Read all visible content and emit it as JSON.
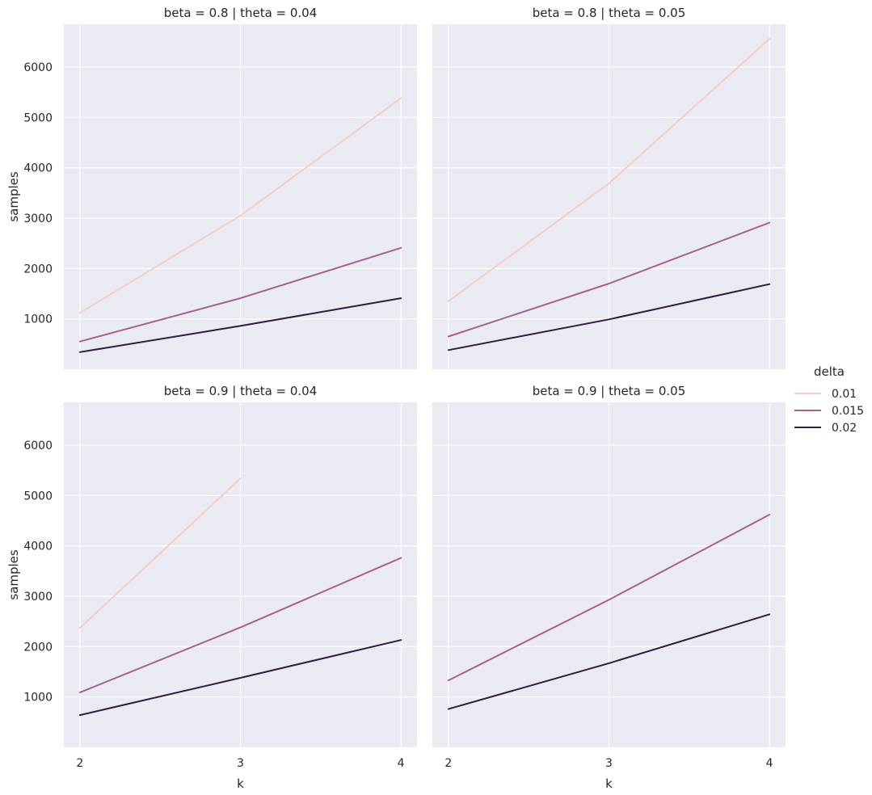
{
  "chart_data": {
    "type": "line",
    "facet_rows": {
      "variable": "beta",
      "values": [
        "0.8",
        "0.9"
      ]
    },
    "facet_cols": {
      "variable": "theta",
      "values": [
        "0.04",
        "0.05"
      ]
    },
    "xlabel": "k",
    "ylabel": "samples",
    "x": [
      2,
      3,
      4
    ],
    "xlim": [
      1.9,
      4.1
    ],
    "ylim": [
      0,
      6850
    ],
    "y_ticks": [
      1000,
      2000,
      3000,
      4000,
      5000,
      6000
    ],
    "x_ticks": [
      2,
      3,
      4
    ],
    "grid": true,
    "legend": {
      "title": "delta",
      "placement": "center-right",
      "entries": [
        {
          "label": "0.01",
          "color": "#F2D0C6"
        },
        {
          "label": "0.015",
          "color": "#A8628A"
        },
        {
          "label": "0.02",
          "color": "#2D1E3E"
        }
      ]
    },
    "panels": [
      {
        "title": "beta = 0.8 | theta = 0.04",
        "row": 0,
        "col": 0,
        "series": [
          {
            "delta": "0.01",
            "values": [
              1120,
              3050,
              5380
            ]
          },
          {
            "delta": "0.015",
            "values": [
              550,
              1410,
              2410
            ]
          },
          {
            "delta": "0.02",
            "values": [
              340,
              860,
              1410
            ]
          }
        ]
      },
      {
        "title": "beta = 0.8 | theta = 0.05",
        "row": 0,
        "col": 1,
        "series": [
          {
            "delta": "0.01",
            "values": [
              1350,
              3690,
              6560
            ]
          },
          {
            "delta": "0.015",
            "values": [
              650,
              1700,
              2910
            ]
          },
          {
            "delta": "0.02",
            "values": [
              380,
              990,
              1690
            ]
          }
        ]
      },
      {
        "title": "beta = 0.9 | theta = 0.04",
        "row": 1,
        "col": 0,
        "series": [
          {
            "delta": "0.01",
            "values": [
              2370,
              5340,
              null
            ]
          },
          {
            "delta": "0.015",
            "values": [
              1090,
              2380,
              3760
            ]
          },
          {
            "delta": "0.02",
            "values": [
              640,
              1380,
              2130
            ]
          }
        ]
      },
      {
        "title": "beta = 0.9 | theta = 0.05",
        "row": 1,
        "col": 1,
        "series": [
          {
            "delta": "0.015",
            "values": [
              1330,
              2930,
              4620
            ]
          },
          {
            "delta": "0.02",
            "values": [
              760,
              1670,
              2640
            ]
          }
        ]
      }
    ]
  }
}
